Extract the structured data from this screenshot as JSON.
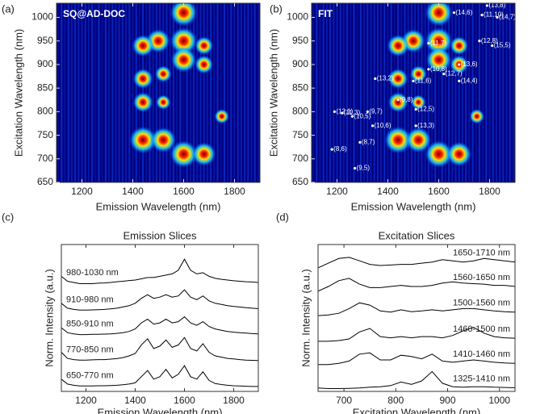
{
  "chart_data": [
    {
      "type": "heatmap",
      "panel": "(a)",
      "annotation": "SQ@AD-DOC",
      "x_label": "Emission Wavelength (nm)",
      "y_label": "Excitation Wavelength (nm)",
      "xlim": [
        1100,
        1900
      ],
      "xticks": [
        1200,
        1400,
        1600,
        1800
      ],
      "ylim": [
        650,
        1030
      ],
      "yticks": [
        650,
        700,
        750,
        800,
        850,
        900,
        950,
        1000
      ],
      "spots": {
        "x": [
          1440,
          1520,
          1600,
          1680,
          1600,
          1600,
          1600,
          1500,
          1440,
          1440,
          1440,
          1520,
          1680,
          1680,
          1750,
          1520
        ],
        "y": [
          740,
          740,
          710,
          710,
          1010,
          950,
          910,
          950,
          940,
          870,
          820,
          880,
          940,
          900,
          790,
          820
        ],
        "values": [
          1,
          0.9,
          1,
          0.8,
          1,
          1,
          0.9,
          0.8,
          0.7,
          0.6,
          0.6,
          0.4,
          0.5,
          0.5,
          0.3,
          0.3
        ]
      }
    },
    {
      "type": "heatmap",
      "panel": "(b)",
      "annotation": "FIT",
      "x_label": "Emission Wavelength (nm)",
      "y_label": "Excitation Wavelength (nm)",
      "xlim": [
        1100,
        1900
      ],
      "xticks": [
        1200,
        1400,
        1600,
        1800
      ],
      "ylim": [
        650,
        1030
      ],
      "yticks": [
        650,
        700,
        750,
        800,
        850,
        900,
        950,
        1000
      ],
      "spots": {
        "x": [
          1440,
          1520,
          1600,
          1680,
          1600,
          1600,
          1600,
          1500,
          1440,
          1440,
          1440,
          1520,
          1680,
          1680,
          1750,
          1520
        ],
        "y": [
          740,
          740,
          710,
          710,
          1010,
          950,
          910,
          950,
          940,
          870,
          820,
          880,
          940,
          900,
          790,
          820
        ],
        "values": [
          1,
          0.9,
          1,
          0.85,
          1,
          1,
          0.9,
          0.8,
          0.7,
          0.6,
          0.6,
          0.4,
          0.5,
          0.5,
          0.3,
          0.3
        ]
      },
      "points": {
        "labels": [
          "(9,5)",
          "(8,6)",
          "(8,7)",
          "(10,6)",
          "(10,5)",
          "(11,3)",
          "(12,1)",
          "(9,7)",
          "(13,3)",
          "(12,5)",
          "(9,8)",
          "(11,6)",
          "(13,2)",
          "(10,8)",
          "(12,7)",
          "(14,4)",
          "(13,6)",
          "(11,7)",
          "(12,8)",
          "(15,5)",
          "(11,10)",
          "(14,7)",
          "(13,8)",
          "(14,6)"
        ],
        "x": [
          1270,
          1180,
          1290,
          1340,
          1260,
          1220,
          1190,
          1320,
          1510,
          1510,
          1440,
          1500,
          1350,
          1560,
          1620,
          1680,
          1680,
          1560,
          1760,
          1810,
          1770,
          1830,
          1790,
          1660
        ],
        "y": [
          680,
          720,
          735,
          770,
          790,
          797,
          800,
          800,
          770,
          805,
          825,
          865,
          870,
          890,
          880,
          865,
          900,
          945,
          950,
          940,
          1005,
          1000,
          1025,
          1010
        ]
      }
    },
    {
      "type": "line",
      "panel": "(c)",
      "title": "Emission Slices",
      "x_label": "Emission Wavelength (nm)",
      "y_label": "Norm. Intensity (a.u.)",
      "xlim": [
        1100,
        1900
      ],
      "xticks": [
        1200,
        1400,
        1600,
        1800
      ],
      "ylim": [
        0,
        6
      ],
      "label_side": "left",
      "x": [
        1100,
        1125,
        1150,
        1175,
        1200,
        1225,
        1250,
        1275,
        1300,
        1325,
        1350,
        1375,
        1400,
        1425,
        1450,
        1475,
        1500,
        1525,
        1550,
        1575,
        1600,
        1625,
        1650,
        1675,
        1700,
        1725,
        1750,
        1775,
        1800,
        1825,
        1850,
        1875,
        1900
      ],
      "series": [
        {
          "name": "650-770 nm",
          "color": "#000000",
          "values": [
            0.5,
            0.3,
            0.25,
            0.22,
            0.22,
            0.22,
            0.23,
            0.23,
            0.24,
            0.25,
            0.27,
            0.3,
            0.35,
            0.6,
            0.85,
            0.5,
            0.6,
            0.9,
            0.55,
            0.7,
            1.05,
            0.6,
            0.5,
            0.8,
            0.45,
            0.32,
            0.28,
            0.25,
            0.23,
            0.22,
            0.21,
            0.2,
            0.2
          ]
        },
        {
          "name": "770-850 nm",
          "color": "#000000",
          "values": [
            1.6,
            1.35,
            1.3,
            1.28,
            1.28,
            1.29,
            1.3,
            1.3,
            1.32,
            1.34,
            1.38,
            1.45,
            1.55,
            1.9,
            2.15,
            1.75,
            1.85,
            2.1,
            1.8,
            1.9,
            2.2,
            1.75,
            1.65,
            1.95,
            1.6,
            1.45,
            1.4,
            1.35,
            1.33,
            1.3,
            1.28,
            1.27,
            1.26
          ]
        },
        {
          "name": "850-910 nm",
          "color": "#000000",
          "values": [
            2.6,
            2.4,
            2.35,
            2.32,
            2.32,
            2.33,
            2.33,
            2.34,
            2.35,
            2.37,
            2.4,
            2.45,
            2.55,
            2.8,
            2.95,
            2.75,
            2.8,
            2.95,
            2.8,
            2.85,
            3.05,
            2.8,
            2.7,
            2.85,
            2.65,
            2.55,
            2.5,
            2.45,
            2.42,
            2.4,
            2.38,
            2.36,
            2.35
          ]
        },
        {
          "name": "910-980 nm",
          "color": "#000000",
          "values": [
            3.6,
            3.4,
            3.35,
            3.32,
            3.32,
            3.33,
            3.34,
            3.35,
            3.37,
            3.4,
            3.45,
            3.5,
            3.6,
            3.8,
            3.95,
            3.8,
            3.85,
            3.95,
            3.85,
            3.9,
            4.15,
            3.85,
            3.75,
            3.9,
            3.7,
            3.6,
            3.55,
            3.5,
            3.47,
            3.45,
            3.42,
            3.4,
            3.38
          ]
        },
        {
          "name": "980-1030 nm",
          "color": "#000000",
          "values": [
            4.7,
            4.5,
            4.45,
            4.4,
            4.4,
            4.4,
            4.42,
            4.43,
            4.45,
            4.48,
            4.5,
            4.53,
            4.55,
            4.6,
            4.65,
            4.65,
            4.7,
            4.75,
            4.8,
            4.95,
            5.4,
            4.95,
            4.8,
            4.85,
            4.7,
            4.62,
            4.58,
            4.55,
            4.52,
            4.5,
            4.48,
            4.47,
            4.45
          ]
        }
      ]
    },
    {
      "type": "line",
      "panel": "(d)",
      "title": "Excitation Slices",
      "x_label": "Excitation Wavelength (nm)",
      "y_label": "Norm. Intensity (a.u.)",
      "xlim": [
        650,
        1030
      ],
      "xticks": [
        700,
        800,
        900,
        1000
      ],
      "ylim": [
        0,
        6.3
      ],
      "label_side": "right",
      "x": [
        650,
        670,
        690,
        710,
        730,
        750,
        770,
        790,
        810,
        830,
        850,
        870,
        890,
        910,
        930,
        950,
        970,
        990,
        1010,
        1030
      ],
      "series": [
        {
          "name": "1325-1410 nm",
          "color": "#000000",
          "values": [
            0.15,
            0.12,
            0.12,
            0.13,
            0.15,
            0.18,
            0.2,
            0.25,
            0.4,
            0.3,
            0.45,
            0.85,
            0.35,
            0.2,
            0.18,
            0.2,
            0.2,
            0.18,
            0.17,
            0.16
          ]
        },
        {
          "name": "1410-1460 nm",
          "color": "#000000",
          "values": [
            1.15,
            1.15,
            1.2,
            1.3,
            1.6,
            1.65,
            1.35,
            1.35,
            1.55,
            1.5,
            1.4,
            1.6,
            1.3,
            1.25,
            1.3,
            1.35,
            1.3,
            1.25,
            1.22,
            1.2
          ]
        },
        {
          "name": "1460-1500 nm",
          "color": "#000000",
          "values": [
            2.15,
            2.15,
            2.18,
            2.25,
            2.55,
            2.7,
            2.35,
            2.3,
            2.35,
            2.3,
            2.35,
            2.35,
            2.3,
            2.4,
            2.6,
            2.75,
            2.5,
            2.35,
            2.3,
            2.28
          ]
        },
        {
          "name": "1500-1560 nm",
          "color": "#000000",
          "values": [
            3.25,
            3.28,
            3.35,
            3.55,
            3.8,
            3.7,
            3.45,
            3.4,
            3.5,
            3.42,
            3.45,
            3.5,
            3.45,
            3.5,
            3.55,
            3.55,
            3.5,
            3.45,
            3.42,
            3.4
          ]
        },
        {
          "name": "1560-1650 nm",
          "color": "#000000",
          "values": [
            4.3,
            4.5,
            4.75,
            4.85,
            4.6,
            4.45,
            4.45,
            4.5,
            4.55,
            4.5,
            4.5,
            4.55,
            4.65,
            4.7,
            4.65,
            4.62,
            4.6,
            4.55,
            4.55,
            4.5
          ]
        },
        {
          "name": "1650-1710 nm",
          "color": "#000000",
          "values": [
            5.3,
            5.5,
            5.7,
            5.75,
            5.6,
            5.45,
            5.4,
            5.42,
            5.45,
            5.45,
            5.5,
            5.55,
            5.65,
            5.6,
            5.55,
            5.6,
            5.7,
            5.65,
            5.6,
            5.55
          ]
        }
      ]
    }
  ]
}
